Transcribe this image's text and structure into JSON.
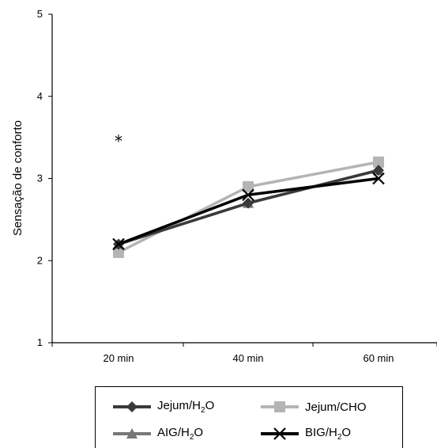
{
  "chart_data": {
    "type": "line",
    "categories": [
      "20 min",
      "40 min",
      "60 min"
    ],
    "ylabel": "Sensação de conforto",
    "xlabel": "",
    "ylim": [
      1,
      5
    ],
    "yticks": [
      "1",
      "2",
      "3",
      "4",
      "5"
    ],
    "grid": false,
    "legend_position": "bottom",
    "annotations": [
      {
        "text": "*",
        "category": "20 min",
        "y": 3.5
      }
    ],
    "series": [
      {
        "name": "Jejum/H2O",
        "label_main": "Jejum/H",
        "label_sub": "2",
        "label_tail": "O",
        "values": [
          2.2,
          2.7,
          3.1
        ],
        "color": "#3a3a3a",
        "marker": "diamond"
      },
      {
        "name": "Jejum/CHO",
        "label_main": "Jejum/CHO",
        "label_sub": "",
        "label_tail": "",
        "values": [
          2.1,
          2.9,
          3.2
        ],
        "color": "#b4b4b4",
        "marker": "square"
      },
      {
        "name": "AIG/H2O",
        "label_main": "AIG/H",
        "label_sub": "2",
        "label_tail": "O",
        "values": [
          2.2,
          2.7,
          3.1
        ],
        "color": "#777777",
        "marker": "triangle"
      },
      {
        "name": "BIG/H2O",
        "label_main": "BIG/H",
        "label_sub": "2",
        "label_tail": "O",
        "values": [
          2.2,
          2.8,
          3.0
        ],
        "color": "#000000",
        "marker": "x"
      }
    ]
  }
}
